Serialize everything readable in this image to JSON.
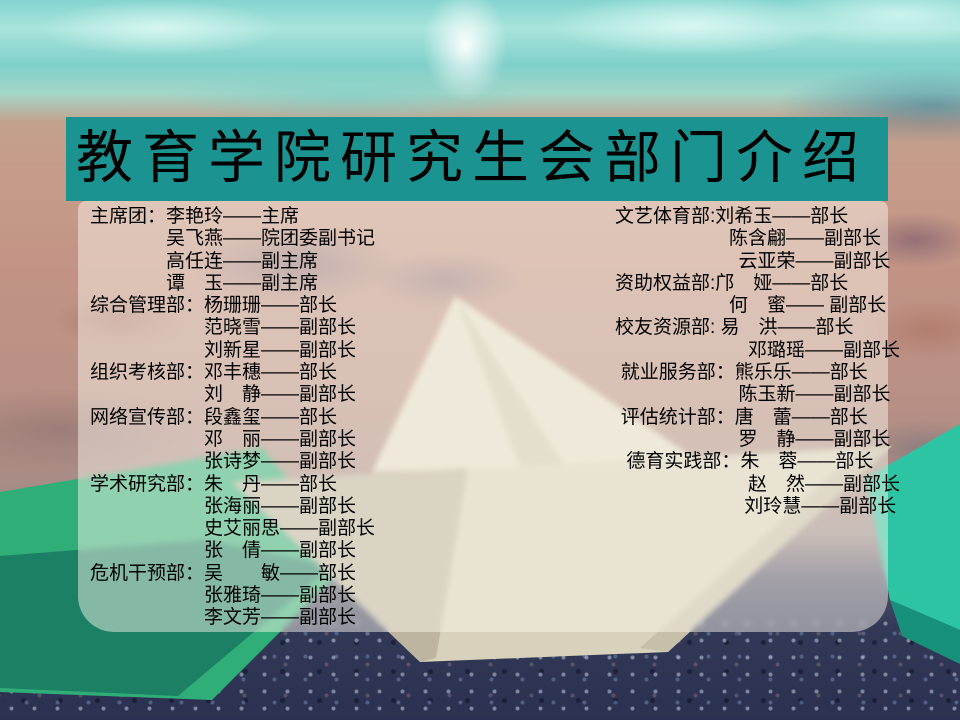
{
  "slide": {
    "title": "教育学院研究生会部门介绍"
  },
  "colors": {
    "banner_teal": "#1b9390",
    "panel_overlay": "#faf6ec",
    "text_black": "#000000",
    "water_cyan": "#84d4cf",
    "sand_tan": "#c49a88",
    "pebble_navy": "#2b3150",
    "boat_green": "#2fae77",
    "boat_paper": "#d8d2bd",
    "boat_teal": "#2cc4a0"
  },
  "roster": {
    "left": [
      {
        "indent": 0,
        "text": "主席团：李艳玲——主席"
      },
      {
        "indent": 4,
        "text": "吴飞燕——院团委副书记"
      },
      {
        "indent": 4,
        "text": "高任连——副主席"
      },
      {
        "indent": 4,
        "text": "谭　玉——副主席"
      },
      {
        "indent": 0,
        "text": "综合管理部：杨珊珊——部长"
      },
      {
        "indent": 6,
        "text": "范晓雪——副部长"
      },
      {
        "indent": 6,
        "text": "刘新星——副部长"
      },
      {
        "indent": 0,
        "text": "组织考核部：邓丰穗——部长"
      },
      {
        "indent": 6,
        "text": "刘　静——副部长"
      },
      {
        "indent": 0,
        "text": "网络宣传部：段鑫玺——部长"
      },
      {
        "indent": 6,
        "text": "邓　丽——副部长"
      },
      {
        "indent": 6,
        "text": "张诗梦——副部长"
      },
      {
        "indent": 0,
        "text": "学术研究部：朱　丹——部长"
      },
      {
        "indent": 6,
        "text": "张海丽——副部长"
      },
      {
        "indent": 6,
        "text": "史艾丽思——副部长"
      },
      {
        "indent": 6,
        "text": "张　倩——副部长"
      },
      {
        "indent": 0,
        "text": "危机干预部：吴　　敏——部长"
      },
      {
        "indent": 6,
        "text": "张雅琦——副部长"
      },
      {
        "indent": 6,
        "text": "李文芳——副部长"
      }
    ],
    "right": [
      {
        "indent": 0,
        "text": "文艺体育部:刘希玉——部长"
      },
      {
        "indent": 6,
        "text": "陈含翩——副部长"
      },
      {
        "indent": 6.5,
        "text": "云亚荣——副部长"
      },
      {
        "indent": 0,
        "text": "资助权益部:邝　娅——部长"
      },
      {
        "indent": 6,
        "text": "何　蜜—— 副部长"
      },
      {
        "indent": 0,
        "text": "校友资源部: 易　洪——部长"
      },
      {
        "indent": 7,
        "text": "邓璐瑶——副部长"
      },
      {
        "indent": 0.3,
        "text": "就业服务部：熊乐乐——部长"
      },
      {
        "indent": 6.5,
        "text": "陈玉新——副部长"
      },
      {
        "indent": 0.3,
        "text": "评估统计部：唐　蕾——部长"
      },
      {
        "indent": 6.5,
        "text": "罗　静——副部长"
      },
      {
        "indent": 0.6,
        "text": "德育实践部：朱　蓉——部长"
      },
      {
        "indent": 7,
        "text": "赵　然——副部长"
      },
      {
        "indent": 6.8,
        "text": "刘玲慧——副部长"
      }
    ]
  }
}
